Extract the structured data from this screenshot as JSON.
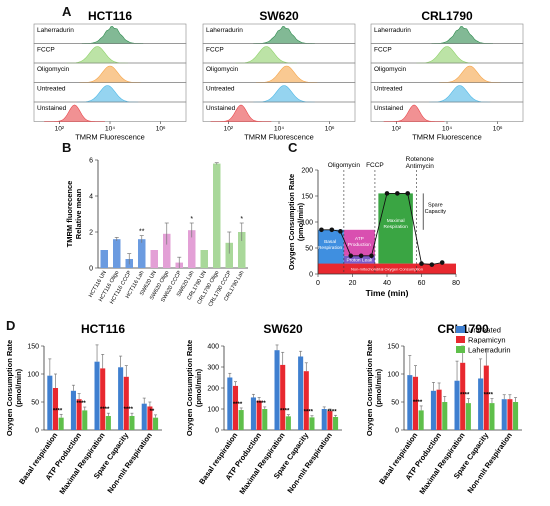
{
  "panels": {
    "a": "A",
    "b": "B",
    "c": "C",
    "d": "D"
  },
  "colors": {
    "laherradurin": "#2e8b4e",
    "fccp": "#8fd16a",
    "oligomycin": "#f5a54a",
    "untreated": "#4fb8e6",
    "unstained": "#e8474b",
    "bar_blue": "#3f7fd0",
    "bar_red": "#e8282f",
    "bar_green": "#5fbf4a",
    "b_blue": "#6b9be0",
    "b_pink": "#e3a0d6",
    "b_green": "#a9d89a"
  },
  "chart_data": [
    {
      "id": "A1",
      "type": "area",
      "title": "HCT116",
      "xlabel": "TMRM Fluorescence",
      "xscale": "log",
      "xticks": [
        "10²",
        "10⁴",
        "10⁶"
      ],
      "rows": [
        "Laherradurin",
        "FCCP",
        "Oligomycin",
        "Untreated",
        "Unstained"
      ],
      "peaks_log10": [
        4.1,
        3.5,
        4.0,
        3.9,
        2.6
      ]
    },
    {
      "id": "A2",
      "type": "area",
      "title": "SW620",
      "xlabel": "TMRM Fluorescence",
      "xscale": "log",
      "xticks": [
        "10²",
        "10⁴",
        "10⁶"
      ],
      "rows": [
        "Laherradurin",
        "FCCP",
        "Oligomycin",
        "Untreated",
        "Unstained"
      ],
      "peaks_log10": [
        4.2,
        3.5,
        4.3,
        4.2,
        2.5
      ]
    },
    {
      "id": "A3",
      "type": "area",
      "title": "CRL1790",
      "xlabel": "TMRM Fluorescence",
      "xscale": "log",
      "xticks": [
        "10²",
        "10⁴",
        "10⁶"
      ],
      "rows": [
        "Laherradurin",
        "FCCP",
        "Oligomycin",
        "Untreated",
        "Unstained"
      ],
      "peaks_log10": [
        4.6,
        4.0,
        4.9,
        4.5,
        2.7
      ]
    },
    {
      "id": "B",
      "type": "bar",
      "ylabel": "TMRM fluorecence\nRelative mean",
      "ylim": [
        0,
        6
      ],
      "yticks": [
        "0",
        "2",
        "4",
        "6"
      ],
      "categories": [
        "HCT116 UN",
        "HCT116 Oligo",
        "HCT116 CCCP",
        "HCT116 Lah",
        "SW620 UN",
        "SW620 Oligo",
        "SW620 CCCP",
        "SW620 Lah",
        "CRL1790 UN",
        "CRL1790 Oligo",
        "CRL1790 CCCP",
        "CRL1790 Lah"
      ],
      "values": [
        1.0,
        1.6,
        0.5,
        1.6,
        1.0,
        1.9,
        0.3,
        2.1,
        1.0,
        5.8,
        1.4,
        2.0
      ],
      "errors": [
        0,
        0.1,
        0.3,
        0.2,
        0,
        0.6,
        0.3,
        0.4,
        0,
        0.05,
        0.6,
        0.5
      ],
      "stars": [
        "",
        "",
        "",
        "**",
        "",
        "",
        "",
        "*",
        "",
        "",
        "",
        "*"
      ]
    },
    {
      "id": "C",
      "type": "line",
      "xlabel": "Time (min)",
      "ylabel": "Oxygen Consumption Rate\n(pmol/min)",
      "xlim": [
        0,
        80
      ],
      "ylim": [
        0,
        200
      ],
      "xticks": [
        "0",
        "20",
        "40",
        "60",
        "80"
      ],
      "yticks": [
        "0",
        "50",
        "100",
        "150",
        "200"
      ],
      "x": [
        2,
        8,
        13,
        19,
        25,
        31,
        40,
        46,
        52,
        60,
        66,
        72
      ],
      "y": [
        85,
        85,
        82,
        35,
        35,
        35,
        155,
        155,
        155,
        20,
        18,
        22
      ],
      "injections": [
        "Oligomycin",
        "FCCP",
        "Rotenone\nAntimycin"
      ],
      "regions": [
        "Basal\nRespiration",
        "ATP\nProduction",
        "Proton Leak",
        "Maximal\nRespiration",
        "Spare\nCapacity",
        "Non-mitochondrial Oxygen Consumption"
      ]
    },
    {
      "id": "D1",
      "type": "bar",
      "title": "HCT116",
      "ylabel": "Oxygen Consumption Rate\n(pmol/min)",
      "ylim": [
        0,
        150
      ],
      "yticks": [
        "0",
        "50",
        "100",
        "150"
      ],
      "categories": [
        "Basal respiration",
        "ATP Production",
        "Maximal Respiration",
        "Spare Capacity",
        "Non-mit Respiration"
      ],
      "series": [
        {
          "name": "Untreated",
          "values": [
            97,
            70,
            122,
            112,
            47
          ],
          "errors": [
            30,
            10,
            30,
            20,
            10
          ]
        },
        {
          "name": "Rapamicyn",
          "values": [
            75,
            55,
            110,
            95,
            42
          ],
          "errors": [
            25,
            10,
            25,
            20,
            8
          ]
        },
        {
          "name": "Laherradurin",
          "values": [
            22,
            35,
            25,
            25,
            22
          ],
          "errors": [
            6,
            6,
            5,
            5,
            5
          ]
        }
      ],
      "stars": [
        "****",
        "****",
        "****",
        "****",
        "**"
      ]
    },
    {
      "id": "D2",
      "type": "bar",
      "title": "SW620",
      "ylabel": "Oxygen Consumption Rate\n(pmol/min)",
      "ylim": [
        0,
        400
      ],
      "yticks": [
        "0",
        "100",
        "200",
        "300",
        "400"
      ],
      "categories": [
        "Basal respiration",
        "ATP Production",
        "Maximal Respiration",
        "Spare Capacity",
        "Non-mit Respiration"
      ],
      "series": [
        {
          "name": "Untreated",
          "values": [
            250,
            155,
            380,
            350,
            100
          ],
          "errors": [
            20,
            15,
            25,
            25,
            10
          ]
        },
        {
          "name": "Rapamicyn",
          "values": [
            210,
            140,
            310,
            280,
            90
          ],
          "errors": [
            20,
            15,
            60,
            40,
            10
          ]
        },
        {
          "name": "Laherradurin",
          "values": [
            95,
            100,
            65,
            60,
            62
          ],
          "errors": [
            10,
            10,
            8,
            8,
            8
          ]
        }
      ],
      "stars": [
        "****",
        "****",
        "****",
        "****",
        "****"
      ]
    },
    {
      "id": "D3",
      "type": "bar",
      "title": "CRL1790",
      "ylabel": "Oxygen Consumption Rate\n(pmol/min)",
      "ylim": [
        0,
        150
      ],
      "yticks": [
        "0",
        "50",
        "100",
        "150"
      ],
      "categories": [
        "Basal respiration",
        "ATP Production",
        "Maximal Respiration",
        "Spare Capacity",
        "Non-mit Respiration"
      ],
      "series": [
        {
          "name": "Untreated",
          "values": [
            98,
            70,
            88,
            92,
            55
          ],
          "errors": [
            35,
            15,
            35,
            35,
            8
          ]
        },
        {
          "name": "Rapamicyn",
          "values": [
            95,
            72,
            120,
            115,
            55
          ],
          "errors": [
            20,
            12,
            30,
            30,
            8
          ]
        },
        {
          "name": "Laherradurin",
          "values": [
            35,
            50,
            48,
            48,
            50
          ],
          "errors": [
            8,
            10,
            8,
            8,
            8
          ]
        }
      ],
      "stars": [
        "****",
        "",
        "****",
        "****",
        ""
      ]
    }
  ]
}
